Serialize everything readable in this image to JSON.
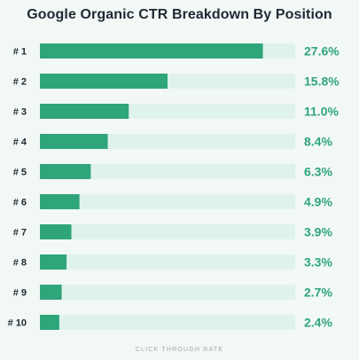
{
  "colors": {
    "background": "#f2f8f6",
    "bar": "#2fa57a",
    "track": "#dff3ec",
    "value_text": "#2fa57a",
    "label_text": "#1f2933",
    "footer_text": "#a3a9ad"
  },
  "chart_data": {
    "type": "bar",
    "orientation": "horizontal",
    "title": "Google Organic CTR Breakdown By Position",
    "xlabel": "CLICK THROUGH RATE",
    "ylabel": "",
    "categories": [
      "# 1",
      "# 2",
      "# 3",
      "# 4",
      "# 5",
      "# 6",
      "# 7",
      "# 8",
      "# 9",
      "# 10"
    ],
    "values": [
      27.6,
      15.8,
      11.0,
      8.4,
      6.3,
      4.9,
      3.9,
      3.3,
      2.7,
      2.4
    ],
    "value_labels": [
      "27.6%",
      "15.8%",
      "11.0%",
      "8.4%",
      "6.3%",
      "4.9%",
      "3.9%",
      "3.3%",
      "2.7%",
      "2.4%"
    ],
    "xlim": [
      0,
      31.6
    ],
    "grid": false,
    "legend": "none"
  }
}
